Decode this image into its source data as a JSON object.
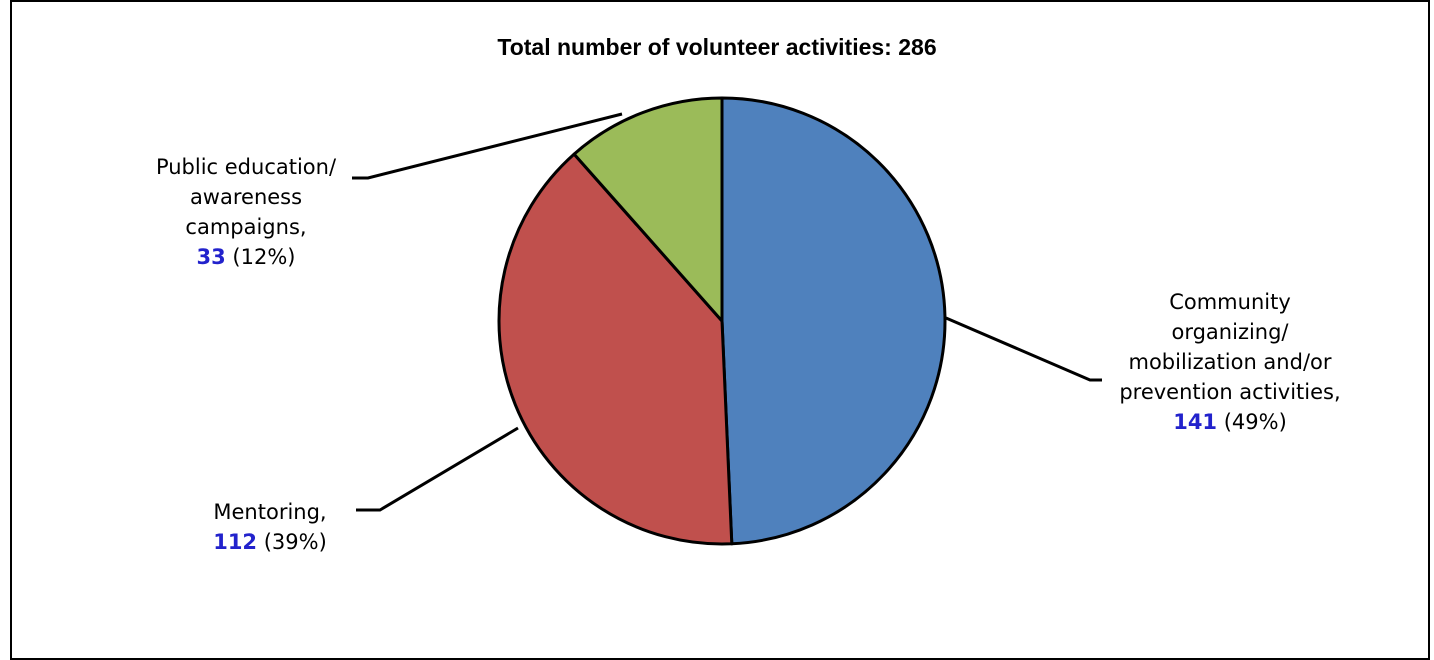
{
  "chart_data": {
    "type": "pie",
    "title": "Total number of volunteer activities: 286",
    "slices": [
      {
        "label": "Community organizing/ mobilization and/or prevention activities,",
        "label_lines": [
          "Community",
          "organizing/",
          "mobilization and/or",
          "prevention activities,"
        ],
        "value": 141,
        "value_text": "141",
        "percent_text": "(49%)",
        "color": "#4f81bd"
      },
      {
        "label": "Mentoring,",
        "label_lines": [
          "Mentoring,"
        ],
        "value": 112,
        "value_text": "112",
        "percent_text": "(39%)",
        "color": "#c0504d"
      },
      {
        "label": "Public education/ awareness campaigns,",
        "label_lines": [
          "Public education/",
          "awareness",
          "campaigns,"
        ],
        "value": 33,
        "value_text": "33",
        "percent_text": "(12%)",
        "color": "#9bbb59"
      }
    ]
  }
}
